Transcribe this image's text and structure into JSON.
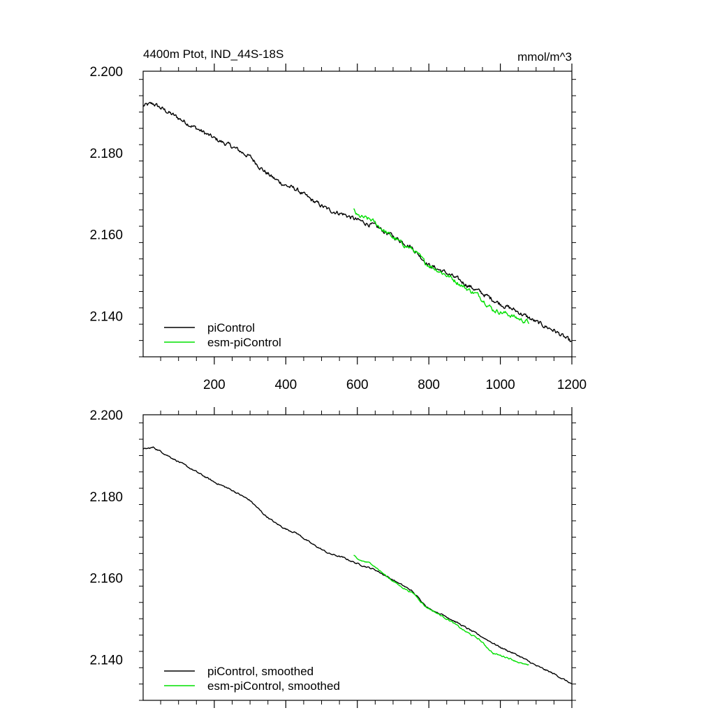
{
  "chart_data": [
    {
      "type": "line",
      "title_left": "4400m Ptot, IND_44S-18S",
      "title_right": "mmol/m^3",
      "xlim": [
        1,
        1200
      ],
      "ylim": [
        2.13,
        2.2
      ],
      "x_ticks": [
        200,
        400,
        600,
        800,
        1000,
        1200
      ],
      "x_tick_labels": [
        "200",
        "400",
        "600",
        "800",
        "1000",
        "1200"
      ],
      "y_ticks": [
        2.14,
        2.16,
        2.18,
        2.2
      ],
      "y_tick_labels": [
        "2.140",
        "2.160",
        "2.180",
        "2.200"
      ],
      "legend_position": "bottom-left",
      "series": [
        {
          "name": "piControl",
          "color": "#000000",
          "noise": 0.0009,
          "x": [
            1,
            30,
            60,
            100,
            150,
            200,
            250,
            300,
            340,
            370,
            400,
            430,
            470,
            520,
            560,
            600,
            650,
            700,
            750,
            800,
            850,
            900,
            950,
            1000,
            1050,
            1100,
            1150,
            1200
          ],
          "y": [
            2.1915,
            2.192,
            2.1905,
            2.1885,
            2.186,
            2.1835,
            2.1815,
            2.179,
            2.1755,
            2.1735,
            2.172,
            2.171,
            2.1685,
            2.166,
            2.165,
            2.1635,
            2.162,
            2.1595,
            2.157,
            2.1525,
            2.1505,
            2.148,
            2.1455,
            2.143,
            2.141,
            2.1385,
            2.1365,
            2.1335
          ]
        },
        {
          "name": "esm-piControl",
          "color": "#00e000",
          "noise": 0.0009,
          "x": [
            590,
            600,
            640,
            680,
            720,
            760,
            790,
            820,
            860,
            900,
            940,
            980,
            1020,
            1060,
            1080
          ],
          "y": [
            2.166,
            2.1645,
            2.1635,
            2.1605,
            2.158,
            2.156,
            2.153,
            2.1515,
            2.1495,
            2.147,
            2.145,
            2.1415,
            2.1405,
            2.139,
            2.1385
          ]
        }
      ]
    },
    {
      "type": "line",
      "xlim": [
        1,
        1200
      ],
      "ylim": [
        2.13,
        2.2
      ],
      "x_ticks": [
        200,
        400,
        600,
        800,
        1000,
        1200
      ],
      "y_ticks": [
        2.14,
        2.16,
        2.18,
        2.2
      ],
      "y_tick_labels": [
        "2.140",
        "2.160",
        "2.180",
        "2.200"
      ],
      "legend_position": "bottom-left",
      "series": [
        {
          "name": "piControl, smoothed",
          "color": "#000000",
          "noise": 0.0003,
          "x": [
            1,
            30,
            60,
            100,
            150,
            200,
            250,
            300,
            340,
            370,
            400,
            430,
            470,
            520,
            560,
            600,
            650,
            700,
            750,
            800,
            850,
            900,
            950,
            1000,
            1050,
            1100,
            1150,
            1200
          ],
          "y": [
            2.1915,
            2.192,
            2.1905,
            2.1885,
            2.186,
            2.1835,
            2.1815,
            2.179,
            2.1755,
            2.1735,
            2.172,
            2.171,
            2.1685,
            2.166,
            2.165,
            2.1635,
            2.162,
            2.1595,
            2.157,
            2.1525,
            2.1505,
            2.148,
            2.1455,
            2.143,
            2.141,
            2.1385,
            2.1365,
            2.134
          ]
        },
        {
          "name": "esm-piControl, smoothed",
          "color": "#00e000",
          "noise": 0.0003,
          "x": [
            590,
            600,
            640,
            680,
            720,
            760,
            790,
            820,
            860,
            900,
            940,
            980,
            1020,
            1060,
            1080
          ],
          "y": [
            2.1655,
            2.1645,
            2.1635,
            2.1605,
            2.158,
            2.156,
            2.153,
            2.1515,
            2.1495,
            2.147,
            2.145,
            2.1415,
            2.1405,
            2.139,
            2.1385
          ]
        }
      ]
    }
  ]
}
